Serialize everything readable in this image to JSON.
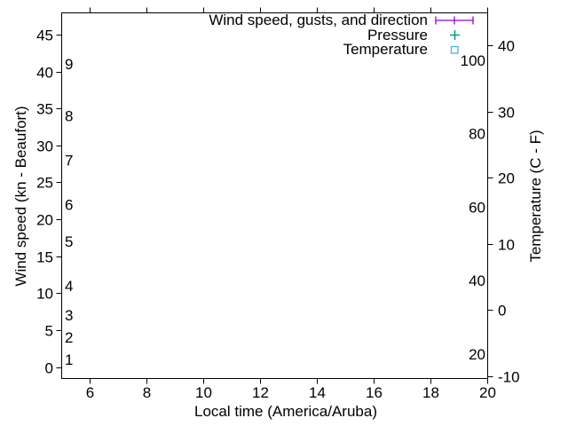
{
  "chart_data": {
    "type": "line",
    "title": "",
    "xlabel": "Local time (America/Aruba)",
    "ylabel": "Wind speed (kn - Beaufort)",
    "y2label": "Temperature (C - F)",
    "xlim": [
      5,
      20
    ],
    "x_ticks": [
      "6",
      "8",
      "10",
      "12",
      "14",
      "16",
      "18",
      "20"
    ],
    "ylim": [
      -1.5,
      48
    ],
    "y_ticks": [
      "0",
      "5",
      "10",
      "15",
      "20",
      "25",
      "30",
      "35",
      "40",
      "45"
    ],
    "y2lim": [
      -10.3,
      45
    ],
    "y2_ticks": [
      "-10",
      "0",
      "10",
      "20",
      "30",
      "40"
    ],
    "beaufort_scale_labels": [
      {
        "text": "1",
        "kn": 1
      },
      {
        "text": "2",
        "kn": 4
      },
      {
        "text": "3",
        "kn": 7
      },
      {
        "text": "4",
        "kn": 11
      },
      {
        "text": "5",
        "kn": 17
      },
      {
        "text": "6",
        "kn": 22
      },
      {
        "text": "7",
        "kn": 28
      },
      {
        "text": "8",
        "kn": 34
      },
      {
        "text": "9",
        "kn": 41
      }
    ],
    "fahrenheit_scale_labels": [
      {
        "text": "20",
        "f": 20
      },
      {
        "text": "40",
        "f": 40
      },
      {
        "text": "60",
        "f": 60
      },
      {
        "text": "80",
        "f": 80
      },
      {
        "text": "100",
        "f": 100
      }
    ],
    "grid": false,
    "legend_position": "top-right-inside",
    "tics_direction": "out",
    "series": [
      {
        "name": "Wind speed, gusts, and direction",
        "color": "#9400d3",
        "marker": "errorbar",
        "axis": "y1",
        "points": []
      },
      {
        "name": "Pressure",
        "color": "#009e73",
        "marker": "plus",
        "axis": "y2",
        "points": []
      },
      {
        "name": "Temperature",
        "color": "#56b4e9",
        "marker": "open-square",
        "axis": "y2",
        "points": []
      }
    ]
  },
  "colors": {
    "axis": "#000000",
    "text": "#000000",
    "background": "#ffffff"
  }
}
